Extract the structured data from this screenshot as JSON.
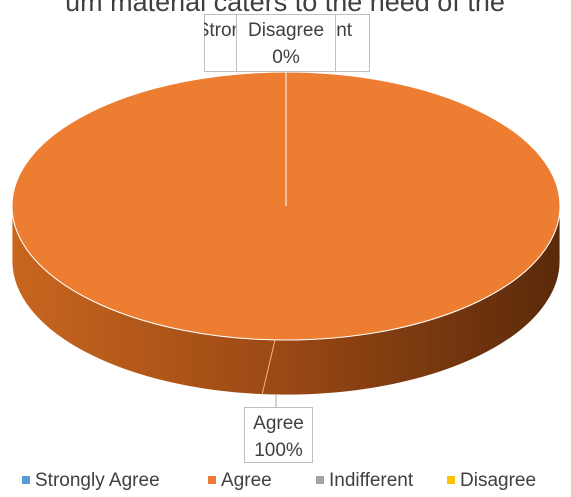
{
  "chart_data": {
    "type": "pie3d",
    "title": "um material caters to the need of the",
    "categories": [
      "Strongly  Agree",
      "Agree",
      "Indifferent",
      "Disagree"
    ],
    "values": [
      0,
      100,
      0,
      0
    ],
    "value_labels": [
      "0%",
      "100%",
      "0%",
      "0%"
    ],
    "colors": [
      "#5b9bd5",
      "#ed7d31",
      "#a5a5a5",
      "#ffc000"
    ],
    "legend": "bottom"
  }
}
